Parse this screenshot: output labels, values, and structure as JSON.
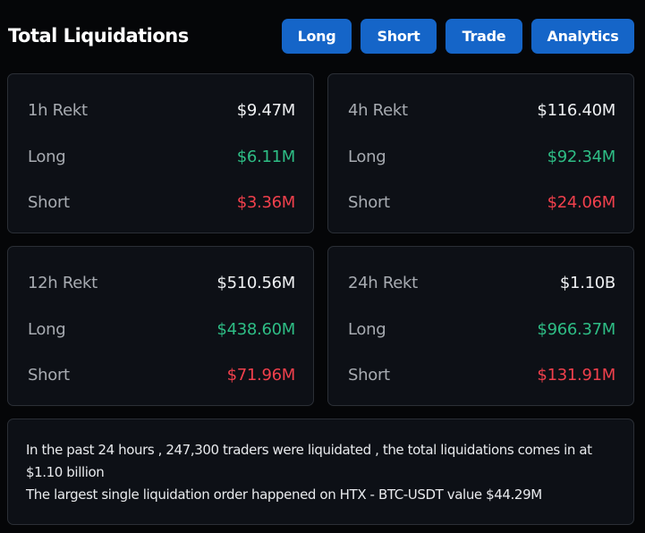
{
  "header": {
    "title": "Total Liquidations",
    "buttons": [
      "Long",
      "Short",
      "Trade",
      "Analytics"
    ]
  },
  "cards": [
    {
      "period": "1h Rekt",
      "total": "$9.47M",
      "long_label": "Long",
      "long": "$6.11M",
      "short_label": "Short",
      "short": "$3.36M"
    },
    {
      "period": "4h Rekt",
      "total": "$116.40M",
      "long_label": "Long",
      "long": "$92.34M",
      "short_label": "Short",
      "short": "$24.06M"
    },
    {
      "period": "12h Rekt",
      "total": "$510.56M",
      "long_label": "Long",
      "long": "$438.60M",
      "short_label": "Short",
      "short": "$71.96M"
    },
    {
      "period": "24h Rekt",
      "total": "$1.10B",
      "long_label": "Long",
      "long": "$966.37M",
      "short_label": "Short",
      "short": "$131.91M"
    }
  ],
  "summary": {
    "line1": "In the past 24 hours , 247,300 traders were liquidated , the total liquidations comes in at $1.10 billion",
    "line2": "The largest single liquidation order happened on HTX - BTC-USDT value $44.29M"
  },
  "colors": {
    "accent": "#1565c8",
    "long": "#2ebd85",
    "short": "#f0404c"
  }
}
